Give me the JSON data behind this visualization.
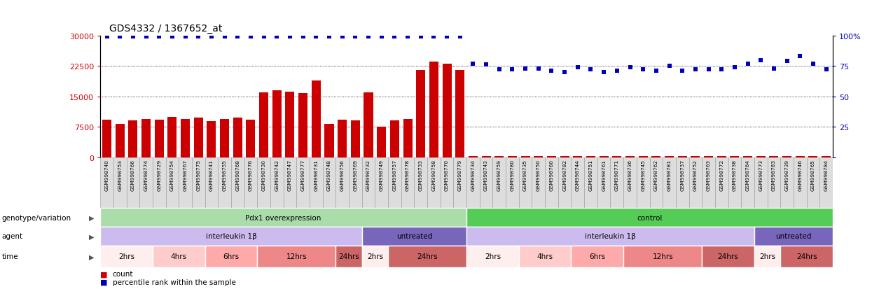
{
  "title": "GDS4332 / 1367652_at",
  "samples": [
    "GSM998740",
    "GSM998753",
    "GSM998766",
    "GSM998774",
    "GSM998729",
    "GSM998754",
    "GSM998767",
    "GSM998775",
    "GSM998741",
    "GSM998755",
    "GSM998768",
    "GSM998776",
    "GSM998730",
    "GSM998742",
    "GSM998747",
    "GSM998777",
    "GSM998731",
    "GSM998748",
    "GSM998756",
    "GSM998769",
    "GSM998732",
    "GSM998749",
    "GSM998757",
    "GSM998778",
    "GSM998733",
    "GSM998758",
    "GSM998770",
    "GSM998779",
    "GSM998734",
    "GSM998743",
    "GSM998759",
    "GSM998780",
    "GSM998735",
    "GSM998750",
    "GSM998760",
    "GSM998782",
    "GSM998744",
    "GSM998751",
    "GSM998761",
    "GSM998771",
    "GSM998736",
    "GSM998745",
    "GSM998762",
    "GSM998781",
    "GSM998737",
    "GSM998752",
    "GSM998763",
    "GSM998772",
    "GSM998738",
    "GSM998764",
    "GSM998773",
    "GSM998783",
    "GSM998739",
    "GSM998746",
    "GSM998765",
    "GSM998784"
  ],
  "counts": [
    9300,
    8200,
    9100,
    9500,
    9200,
    10000,
    9400,
    9800,
    8900,
    9500,
    9700,
    9200,
    16000,
    16500,
    16200,
    15800,
    19000,
    8300,
    9200,
    9000,
    16000,
    7500,
    9000,
    9400,
    21500,
    23500,
    23000,
    21500,
    200,
    200,
    200,
    300,
    200,
    200,
    200,
    200,
    200,
    200,
    200,
    200,
    200,
    200,
    200,
    200,
    200,
    200,
    200,
    200,
    200,
    200,
    200,
    200,
    200,
    200,
    200,
    200
  ],
  "percentiles": [
    99,
    99,
    99,
    99,
    99,
    99,
    99,
    99,
    99,
    99,
    99,
    99,
    99,
    99,
    99,
    99,
    99,
    99,
    99,
    99,
    99,
    99,
    99,
    99,
    99,
    99,
    99,
    99,
    77,
    76,
    72,
    72,
    73,
    73,
    71,
    70,
    74,
    72,
    70,
    71,
    74,
    72,
    71,
    75,
    71,
    72,
    72,
    72,
    74,
    77,
    80,
    73,
    79,
    83,
    77,
    72
  ],
  "left_yticks": [
    0,
    7500,
    15000,
    22500,
    30000
  ],
  "right_yticks": [
    0,
    25,
    50,
    75,
    100
  ],
  "bar_color": "#cc0000",
  "dot_color": "#0000bb",
  "genotype_groups": [
    {
      "label": "Pdx1 overexpression",
      "start": 0,
      "end": 27,
      "color": "#aaddaa"
    },
    {
      "label": "control",
      "start": 28,
      "end": 55,
      "color": "#55cc55"
    }
  ],
  "agent_groups": [
    {
      "label": "interleukin 1β",
      "start": 0,
      "end": 19,
      "color": "#ccbbee"
    },
    {
      "label": "untreated",
      "start": 20,
      "end": 27,
      "color": "#7766bb"
    },
    {
      "label": "interleukin 1β",
      "start": 28,
      "end": 49,
      "color": "#ccbbee"
    },
    {
      "label": "untreated",
      "start": 50,
      "end": 55,
      "color": "#7766bb"
    }
  ],
  "time_groups": [
    {
      "label": "2hrs",
      "start": 0,
      "end": 3,
      "color": "#ffeeee"
    },
    {
      "label": "4hrs",
      "start": 4,
      "end": 7,
      "color": "#ffcccc"
    },
    {
      "label": "6hrs",
      "start": 8,
      "end": 11,
      "color": "#ffaaaa"
    },
    {
      "label": "12hrs",
      "start": 12,
      "end": 17,
      "color": "#ee8888"
    },
    {
      "label": "24hrs",
      "start": 18,
      "end": 19,
      "color": "#cc6666"
    },
    {
      "label": "2hrs",
      "start": 20,
      "end": 21,
      "color": "#ffeeee"
    },
    {
      "label": "24hrs",
      "start": 22,
      "end": 27,
      "color": "#cc6666"
    },
    {
      "label": "2hrs",
      "start": 28,
      "end": 31,
      "color": "#ffeeee"
    },
    {
      "label": "4hrs",
      "start": 32,
      "end": 35,
      "color": "#ffcccc"
    },
    {
      "label": "6hrs",
      "start": 36,
      "end": 39,
      "color": "#ffaaaa"
    },
    {
      "label": "12hrs",
      "start": 40,
      "end": 45,
      "color": "#ee8888"
    },
    {
      "label": "24hrs",
      "start": 46,
      "end": 49,
      "color": "#cc6666"
    },
    {
      "label": "2hrs",
      "start": 50,
      "end": 51,
      "color": "#ffeeee"
    },
    {
      "label": "24hrs",
      "start": 52,
      "end": 55,
      "color": "#cc6666"
    }
  ],
  "row_labels": [
    "genotype/variation",
    "agent",
    "time"
  ]
}
